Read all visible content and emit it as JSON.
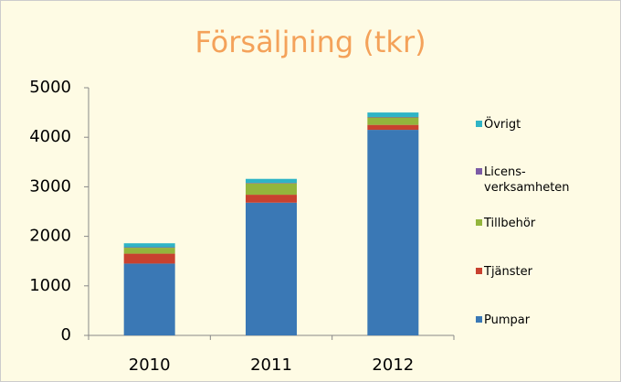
{
  "chart_data": {
    "type": "stacked_bar",
    "title": "Försäljning (tkr)",
    "categories": [
      "2010",
      "2011",
      "2012"
    ],
    "series": [
      {
        "name": "Pumpar",
        "color": "#3a78b5",
        "values": [
          1450,
          2680,
          4150
        ]
      },
      {
        "name": "Tjänster",
        "color": "#c8412f",
        "values": [
          200,
          160,
          100
        ]
      },
      {
        "name": "Tillbehör",
        "color": "#93b53c",
        "values": [
          120,
          230,
          150
        ]
      },
      {
        "name": "Licens-verksamheten",
        "color": "#7c5ba6",
        "values": [
          10,
          10,
          10
        ]
      },
      {
        "name": "Övrigt",
        "color": "#2fb4c6",
        "values": [
          80,
          80,
          90
        ]
      }
    ],
    "ylim": [
      0,
      5000
    ],
    "yticks": [
      0,
      1000,
      2000,
      3000,
      4000,
      5000
    ],
    "grid": false,
    "legend": "right"
  }
}
